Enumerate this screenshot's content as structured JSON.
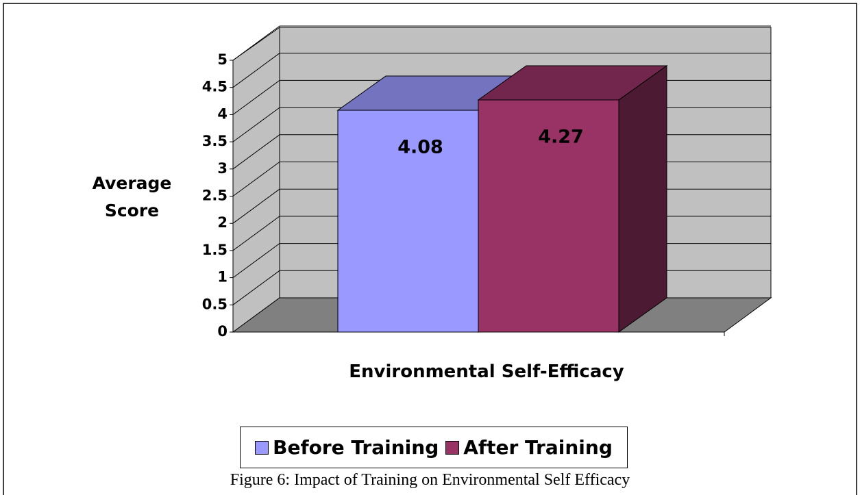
{
  "chart_data": {
    "type": "bar3d",
    "caption": "Figure 6: Impact of Training on Environmental Self Efficacy",
    "x_label": "Environmental Self-Efficacy",
    "y_label": "Average Score",
    "categories": [
      null
    ],
    "series": [
      {
        "name": "Before Training",
        "color": "#9999ff",
        "values": [
          4.08
        ]
      },
      {
        "name": "After Training",
        "color": "#993366",
        "values": [
          4.27
        ]
      }
    ],
    "ylim": [
      0,
      5
    ],
    "yticks": [
      0,
      0.5,
      1,
      1.5,
      2,
      2.5,
      3,
      3.5,
      4,
      4.5,
      5
    ],
    "grid": true,
    "legend": "bottom"
  }
}
